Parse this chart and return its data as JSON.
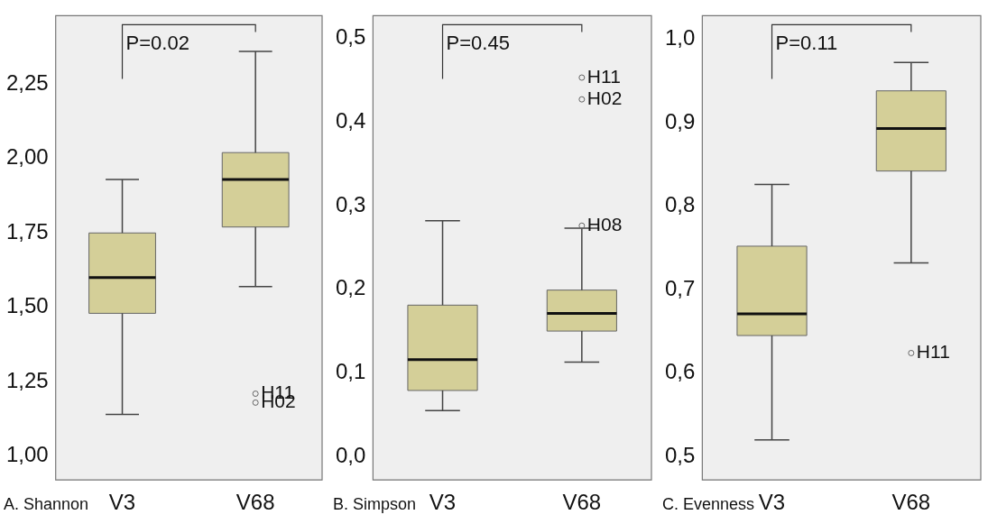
{
  "chart_data": [
    {
      "type": "box",
      "xlabel": "A. Shannon",
      "categories": [
        "V3",
        "V68"
      ],
      "ylim": [
        0.92,
        2.48
      ],
      "yticks": [
        {
          "value": 1,
          "label": "1,00"
        },
        {
          "value": 1.25,
          "label": "1,25"
        },
        {
          "value": 1.5,
          "label": "1,50"
        },
        {
          "value": 1.75,
          "label": "1,75"
        },
        {
          "value": 2,
          "label": "2,00"
        },
        {
          "value": 2.25,
          "label": "2,25"
        }
      ],
      "grid": false,
      "legend": false,
      "series": [
        {
          "color": "#d4cf98",
          "boxes": [
            {
              "low": 1.14,
              "q1": 1.48,
              "median": 1.6,
              "q3": 1.75,
              "high": 1.93
            },
            {
              "low": 1.57,
              "q1": 1.77,
              "median": 1.93,
              "q3": 2.02,
              "high": 2.36,
              "outliers": [
                1.21,
                1.18
              ]
            }
          ]
        }
      ],
      "annotations": [
        "P=0.02",
        "H11",
        "H02"
      ]
    },
    {
      "type": "box",
      "xlabel": "B. Simpson",
      "categories": [
        "V3",
        "V68"
      ],
      "ylim": [
        -0.028,
        0.527
      ],
      "yticks": [
        {
          "value": 0,
          "label": "0,0"
        },
        {
          "value": 0.1,
          "label": "0,1"
        },
        {
          "value": 0.2,
          "label": "0,2"
        },
        {
          "value": 0.3,
          "label": "0,3"
        },
        {
          "value": 0.4,
          "label": "0,4"
        },
        {
          "value": 0.5,
          "label": "0,5"
        }
      ],
      "grid": false,
      "legend": false,
      "series": [
        {
          "color": "#d4cf98",
          "boxes": [
            {
              "low": 0.055,
              "q1": 0.079,
              "median": 0.116,
              "q3": 0.181,
              "high": 0.282
            },
            {
              "low": 0.113,
              "q1": 0.15,
              "median": 0.171,
              "q3": 0.199,
              "high": 0.273,
              "outliers": [
                0.276,
                0.453,
                0.427
              ]
            }
          ]
        }
      ],
      "annotations": [
        "P=0.45",
        "H08",
        "H11",
        "H02"
      ]
    },
    {
      "type": "box",
      "xlabel": "C. Evenness",
      "categories": [
        "V3",
        "V68"
      ],
      "ylim": [
        0.472,
        1.028
      ],
      "yticks": [
        {
          "value": 0.5,
          "label": "0,5"
        },
        {
          "value": 0.6,
          "label": "0,6"
        },
        {
          "value": 0.7,
          "label": "0,7"
        },
        {
          "value": 0.8,
          "label": "0,8"
        },
        {
          "value": 0.9,
          "label": "0,9"
        },
        {
          "value": 1,
          "label": "1,0"
        }
      ],
      "grid": false,
      "legend": false,
      "series": [
        {
          "color": "#d4cf98",
          "boxes": [
            {
              "low": 0.52,
              "q1": 0.645,
              "median": 0.671,
              "q3": 0.752,
              "high": 0.826
            },
            {
              "low": 0.732,
              "q1": 0.842,
              "median": 0.893,
              "q3": 0.938,
              "high": 0.972,
              "outliers": [
                0.624
              ]
            }
          ]
        }
      ],
      "annotations": [
        "P=0.11",
        "H11"
      ]
    }
  ]
}
